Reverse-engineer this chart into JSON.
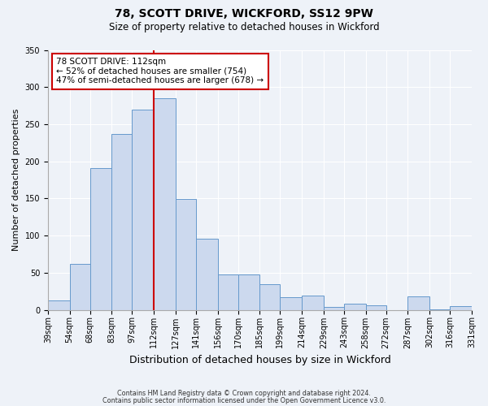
{
  "title": "78, SCOTT DRIVE, WICKFORD, SS12 9PW",
  "subtitle": "Size of property relative to detached houses in Wickford",
  "xlabel": "Distribution of detached houses by size in Wickford",
  "ylabel": "Number of detached properties",
  "bins": [
    39,
    54,
    68,
    83,
    97,
    112,
    127,
    141,
    156,
    170,
    185,
    199,
    214,
    229,
    243,
    258,
    272,
    287,
    302,
    316,
    331
  ],
  "counts": [
    13,
    62,
    191,
    237,
    270,
    285,
    149,
    96,
    48,
    48,
    35,
    17,
    19,
    4,
    8,
    6,
    0,
    18,
    1,
    5
  ],
  "bar_color": "#ccd9ee",
  "bar_edge_color": "#6699cc",
  "vline_x": 112,
  "vline_color": "#cc0000",
  "annotation_text": "78 SCOTT DRIVE: 112sqm\n← 52% of detached houses are smaller (754)\n47% of semi-detached houses are larger (678) →",
  "annotation_box_color": "#ffffff",
  "annotation_box_edge_color": "#cc0000",
  "ylim": [
    0,
    350
  ],
  "yticks": [
    0,
    50,
    100,
    150,
    200,
    250,
    300,
    350
  ],
  "footer1": "Contains HM Land Registry data © Crown copyright and database right 2024.",
  "footer2": "Contains public sector information licensed under the Open Government Licence v3.0.",
  "background_color": "#eef2f8",
  "grid_color": "#ffffff",
  "title_fontsize": 10,
  "subtitle_fontsize": 8.5,
  "ylabel_fontsize": 8,
  "xlabel_fontsize": 9,
  "tick_fontsize": 7,
  "annot_fontsize": 7.5,
  "footer_fontsize": 5.8
}
